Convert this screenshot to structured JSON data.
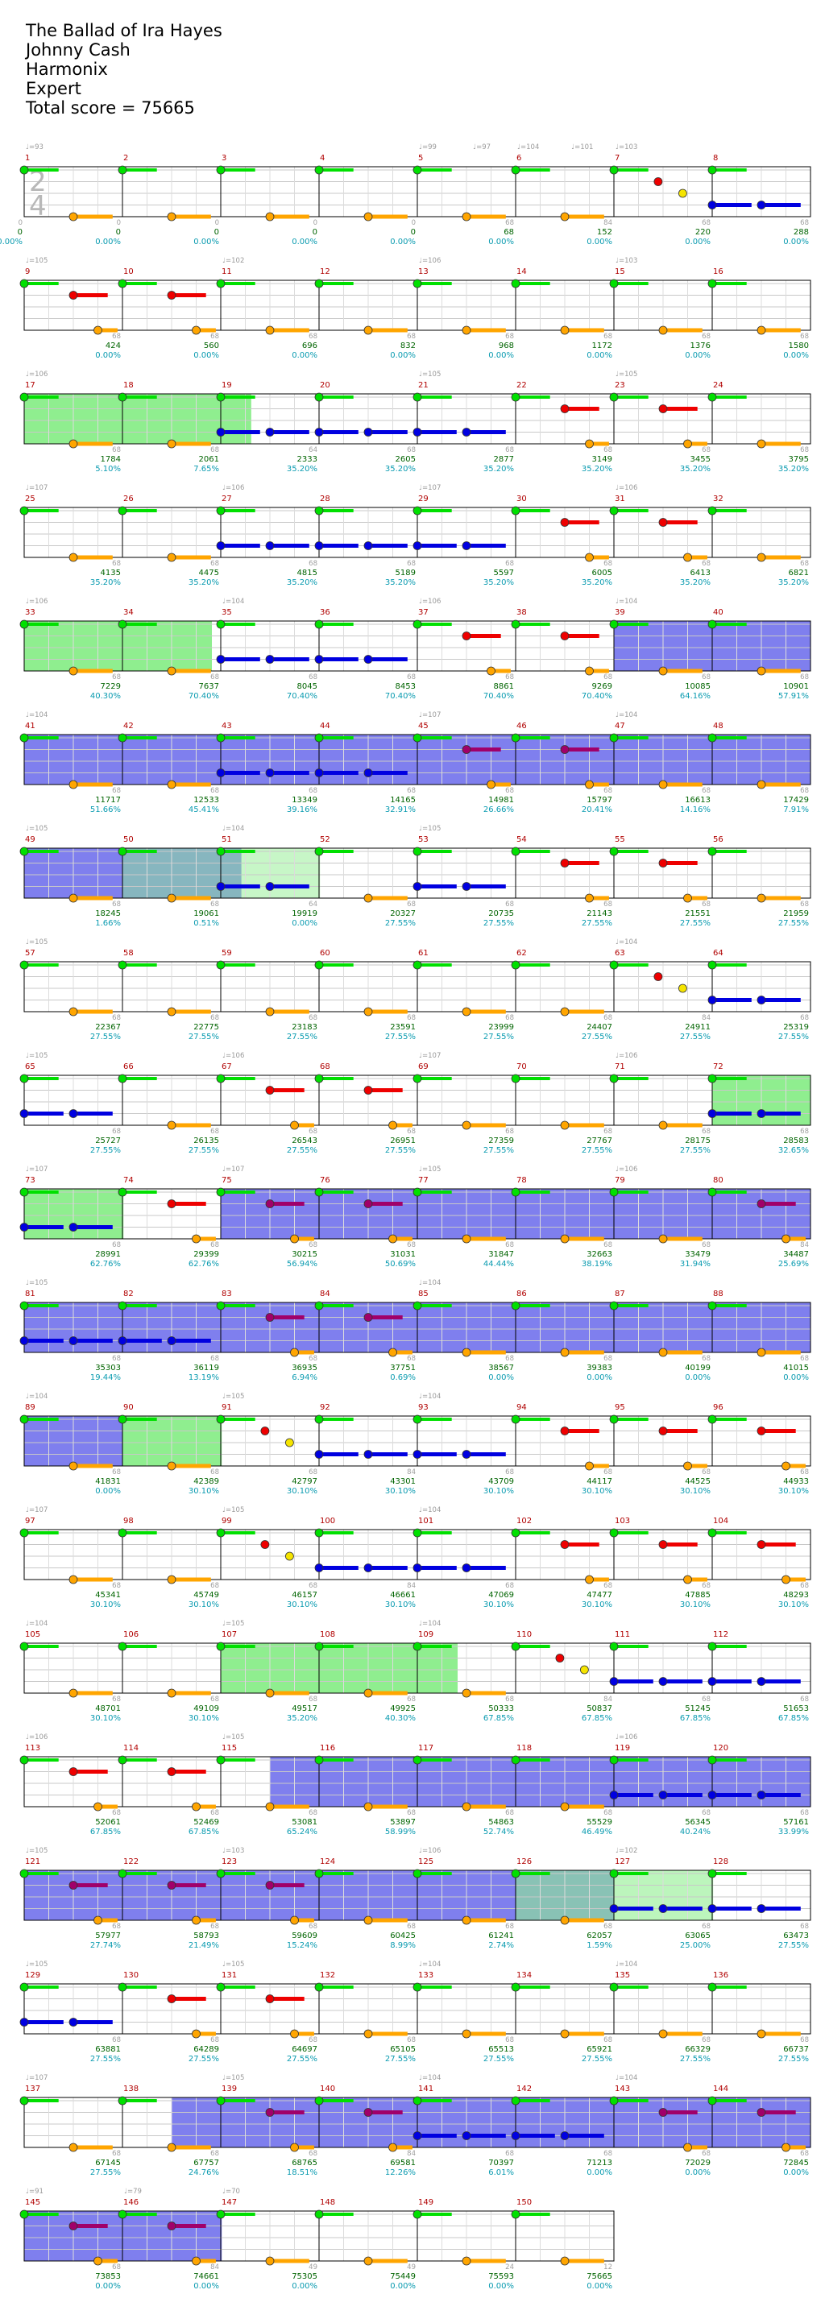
{
  "header": {
    "song": "The Ballad of Ira Hayes",
    "artist": "Johnny Cash",
    "game": "Harmonix",
    "difficulty": "Expert",
    "total_score": "Total score = 75665"
  },
  "time_signature": {
    "top": "2",
    "bottom": "4"
  },
  "colors": {
    "green": "#00e000",
    "red": "#ee0000",
    "yellow": "#f5e400",
    "blue": "#0000e0",
    "orange": "#ffa500",
    "overdrive_note": "#a0006a",
    "overdrive_region": "#7f7fee",
    "solo_region": "#8fee8f",
    "measure_number": "#b00000",
    "score": "#006400",
    "percent": "#0a9bb0"
  },
  "tempo_marks": [
    {
      "measure": 1,
      "label": "♩=93"
    },
    {
      "measure": 5,
      "label": "♩=99"
    },
    {
      "measure": 5,
      "label": "♩=97",
      "offset": 0.55
    },
    {
      "measure": 6,
      "label": "♩=104"
    },
    {
      "measure": 6,
      "label": "♩=101",
      "offset": 0.55
    },
    {
      "measure": 7,
      "label": "♩=103"
    },
    {
      "measure": 9,
      "label": "♩=105"
    },
    {
      "measure": 11,
      "label": "♩=102"
    },
    {
      "measure": 13,
      "label": "♩=106"
    },
    {
      "measure": 15,
      "label": "♩=103"
    },
    {
      "measure": 17,
      "label": "♩=106"
    },
    {
      "measure": 21,
      "label": "♩=105"
    },
    {
      "measure": 23,
      "label": "♩=105"
    },
    {
      "measure": 25,
      "label": "♩=107"
    },
    {
      "measure": 27,
      "label": "♩=106"
    },
    {
      "measure": 29,
      "label": "♩=107"
    },
    {
      "measure": 31,
      "label": "♩=106"
    },
    {
      "measure": 33,
      "label": "♩=106"
    },
    {
      "measure": 35,
      "label": "♩=104"
    },
    {
      "measure": 37,
      "label": "♩=106"
    },
    {
      "measure": 39,
      "label": "♩=104"
    },
    {
      "measure": 41,
      "label": "♩=104"
    },
    {
      "measure": 45,
      "label": "♩=107"
    },
    {
      "measure": 47,
      "label": "♩=104"
    },
    {
      "measure": 49,
      "label": "♩=105"
    },
    {
      "measure": 51,
      "label": "♩=104"
    },
    {
      "measure": 53,
      "label": "♩=105"
    },
    {
      "measure": 57,
      "label": "♩=105"
    },
    {
      "measure": 63,
      "label": "♩=104"
    },
    {
      "measure": 65,
      "label": "♩=105"
    },
    {
      "measure": 67,
      "label": "♩=106"
    },
    {
      "measure": 69,
      "label": "♩=107"
    },
    {
      "measure": 71,
      "label": "♩=106"
    },
    {
      "measure": 73,
      "label": "♩=107"
    },
    {
      "measure": 75,
      "label": "♩=107"
    },
    {
      "measure": 77,
      "label": "♩=105"
    },
    {
      "measure": 79,
      "label": "♩=106"
    },
    {
      "measure": 81,
      "label": "♩=105"
    },
    {
      "measure": 85,
      "label": "♩=104"
    },
    {
      "measure": 89,
      "label": "♩=104"
    },
    {
      "measure": 91,
      "label": "♩=105"
    },
    {
      "measure": 93,
      "label": "♩=104"
    },
    {
      "measure": 97,
      "label": "♩=107"
    },
    {
      "measure": 99,
      "label": "♩=105"
    },
    {
      "measure": 101,
      "label": "♩=104"
    },
    {
      "measure": 105,
      "label": "♩=104"
    },
    {
      "measure": 107,
      "label": "♩=105"
    },
    {
      "measure": 109,
      "label": "♩=104"
    },
    {
      "measure": 113,
      "label": "♩=106"
    },
    {
      "measure": 115,
      "label": "♩=105"
    },
    {
      "measure": 119,
      "label": "♩=106"
    },
    {
      "measure": 121,
      "label": "♩=105"
    },
    {
      "measure": 123,
      "label": "♩=103"
    },
    {
      "measure": 125,
      "label": "♩=106"
    },
    {
      "measure": 127,
      "label": "♩=102"
    },
    {
      "measure": 129,
      "label": "♩=105"
    },
    {
      "measure": 131,
      "label": "♩=105"
    },
    {
      "measure": 133,
      "label": "♩=104"
    },
    {
      "measure": 135,
      "label": "♩=104"
    },
    {
      "measure": 137,
      "label": "♩=107"
    },
    {
      "measure": 139,
      "label": "♩=105"
    },
    {
      "measure": 141,
      "label": "♩=104"
    },
    {
      "measure": 143,
      "label": "♩=104"
    },
    {
      "measure": 145,
      "label": "♩=91"
    },
    {
      "measure": 146,
      "label": "♩=79"
    },
    {
      "measure": 147,
      "label": "♩=70"
    }
  ],
  "measures": [
    {
      "n": 1,
      "bv": "0",
      "score": "0",
      "pct": "0.00%"
    },
    {
      "n": 2,
      "bv": "0",
      "score": "0",
      "pct": "0.00%"
    },
    {
      "n": 3,
      "bv": "0",
      "score": "0",
      "pct": "0.00%"
    },
    {
      "n": 4,
      "bv": "0",
      "score": "0",
      "pct": "0.00%"
    },
    {
      "n": 5,
      "bv": "0",
      "score": "0",
      "pct": "0.00%"
    },
    {
      "n": 6,
      "bv": "68",
      "score": "68",
      "pct": "0.00%"
    },
    {
      "n": 7,
      "bv": "84",
      "score": "152",
      "pct": "0.00%"
    },
    {
      "n": 8,
      "bv": "68",
      "score": "220",
      "pct": "0.00%"
    },
    {
      "n": 0,
      "bv": "68",
      "score": "288",
      "pct": "0.00%"
    },
    {
      "n": 9,
      "bv": "68",
      "score": "424",
      "pct": "0.00%"
    },
    {
      "n": 10,
      "bv": "68",
      "score": "560",
      "pct": "0.00%"
    },
    {
      "n": 11,
      "bv": "68",
      "score": "696",
      "pct": "0.00%"
    },
    {
      "n": 12,
      "bv": "68",
      "score": "832",
      "pct": "0.00%"
    },
    {
      "n": 13,
      "bv": "68",
      "score": "968",
      "pct": "0.00%"
    },
    {
      "n": 14,
      "bv": "68",
      "score": "1172",
      "pct": "0.00%"
    },
    {
      "n": 15,
      "bv": "68",
      "score": "1376",
      "pct": "0.00%"
    },
    {
      "n": 16,
      "bv": "68",
      "score": "1580",
      "pct": "0.00%"
    },
    {
      "n": 17,
      "bv": "68",
      "score": "1784",
      "pct": "5.10%"
    },
    {
      "n": 18,
      "bv": "68",
      "score": "2061",
      "pct": "7.65%"
    },
    {
      "n": 19,
      "bv": "64",
      "score": "2333",
      "pct": "35.20%"
    },
    {
      "n": 20,
      "bv": "68",
      "score": "2605",
      "pct": "35.20%"
    },
    {
      "n": 21,
      "bv": "68",
      "score": "2877",
      "pct": "35.20%"
    },
    {
      "n": 22,
      "bv": "68",
      "score": "3149",
      "pct": "35.20%"
    },
    {
      "n": 23,
      "bv": "68",
      "score": "3455",
      "pct": "35.20%"
    },
    {
      "n": 24,
      "bv": "68",
      "score": "3795",
      "pct": "35.20%"
    },
    {
      "n": 25,
      "bv": "68",
      "score": "4135",
      "pct": "35.20%"
    },
    {
      "n": 26,
      "bv": "68",
      "score": "4475",
      "pct": "35.20%"
    },
    {
      "n": 27,
      "bv": "68",
      "score": "4815",
      "pct": "35.20%"
    },
    {
      "n": 28,
      "bv": "68",
      "score": "5189",
      "pct": "35.20%"
    },
    {
      "n": 29,
      "bv": "68",
      "score": "5597",
      "pct": "35.20%"
    },
    {
      "n": 30,
      "bv": "68",
      "score": "6005",
      "pct": "35.20%"
    },
    {
      "n": 31,
      "bv": "68",
      "score": "6413",
      "pct": "35.20%"
    },
    {
      "n": 32,
      "bv": "68",
      "score": "6821",
      "pct": "35.20%"
    },
    {
      "n": 33,
      "bv": "68",
      "score": "7229",
      "pct": "40.30%"
    },
    {
      "n": 34,
      "bv": "68",
      "score": "7637",
      "pct": "70.40%"
    },
    {
      "n": 35,
      "bv": "68",
      "score": "8045",
      "pct": "70.40%"
    },
    {
      "n": 36,
      "bv": "68",
      "score": "8453",
      "pct": "70.40%"
    },
    {
      "n": 37,
      "bv": "68",
      "score": "8861",
      "pct": "70.40%"
    },
    {
      "n": 38,
      "bv": "68",
      "score": "9269",
      "pct": "70.40%"
    },
    {
      "n": 39,
      "bv": "68",
      "score": "10085",
      "pct": "64.16%"
    },
    {
      "n": 40,
      "bv": "68",
      "score": "10901",
      "pct": "57.91%"
    },
    {
      "n": 41,
      "bv": "68",
      "score": "11717",
      "pct": "51.66%"
    },
    {
      "n": 42,
      "bv": "68",
      "score": "12533",
      "pct": "45.41%"
    },
    {
      "n": 43,
      "bv": "68",
      "score": "13349",
      "pct": "39.16%"
    },
    {
      "n": 44,
      "bv": "68",
      "score": "14165",
      "pct": "32.91%"
    },
    {
      "n": 45,
      "bv": "68",
      "score": "14981",
      "pct": "26.66%"
    },
    {
      "n": 46,
      "bv": "68",
      "score": "15797",
      "pct": "20.41%"
    },
    {
      "n": 47,
      "bv": "68",
      "score": "16613",
      "pct": "14.16%"
    },
    {
      "n": 48,
      "bv": "68",
      "score": "17429",
      "pct": "7.91%"
    },
    {
      "n": 49,
      "bv": "68",
      "score": "18245",
      "pct": "1.66%"
    },
    {
      "n": 50,
      "bv": "68",
      "score": "19061",
      "pct": "0.51%"
    },
    {
      "n": 51,
      "bv": "64",
      "score": "19919",
      "pct": "0.00%"
    },
    {
      "n": 52,
      "bv": "68",
      "score": "20327",
      "pct": "27.55%"
    },
    {
      "n": 53,
      "bv": "68",
      "score": "20735",
      "pct": "27.55%"
    },
    {
      "n": 54,
      "bv": "68",
      "score": "21143",
      "pct": "27.55%"
    },
    {
      "n": 55,
      "bv": "68",
      "score": "21551",
      "pct": "27.55%"
    },
    {
      "n": 56,
      "bv": "68",
      "score": "21959",
      "pct": "27.55%"
    },
    {
      "n": 57,
      "bv": "68",
      "score": "22367",
      "pct": "27.55%"
    },
    {
      "n": 58,
      "bv": "68",
      "score": "22775",
      "pct": "27.55%"
    },
    {
      "n": 59,
      "bv": "68",
      "score": "23183",
      "pct": "27.55%"
    },
    {
      "n": 60,
      "bv": "68",
      "score": "23591",
      "pct": "27.55%"
    },
    {
      "n": 61,
      "bv": "68",
      "score": "23999",
      "pct": "27.55%"
    },
    {
      "n": 62,
      "bv": "68",
      "score": "24407",
      "pct": "27.55%"
    },
    {
      "n": 63,
      "bv": "84",
      "score": "24911",
      "pct": "27.55%"
    },
    {
      "n": 64,
      "bv": "68",
      "score": "25319",
      "pct": "27.55%"
    },
    {
      "n": 65,
      "bv": "68",
      "score": "25727",
      "pct": "27.55%"
    },
    {
      "n": 66,
      "bv": "68",
      "score": "26135",
      "pct": "27.55%"
    },
    {
      "n": 67,
      "bv": "68",
      "score": "26543",
      "pct": "27.55%"
    },
    {
      "n": 68,
      "bv": "68",
      "score": "26951",
      "pct": "27.55%"
    },
    {
      "n": 69,
      "bv": "68",
      "score": "27359",
      "pct": "27.55%"
    },
    {
      "n": 70,
      "bv": "68",
      "score": "27767",
      "pct": "27.55%"
    },
    {
      "n": 71,
      "bv": "68",
      "score": "28175",
      "pct": "27.55%"
    },
    {
      "n": 72,
      "bv": "68",
      "score": "28583",
      "pct": "32.65%"
    },
    {
      "n": 73,
      "bv": "68",
      "score": "28991",
      "pct": "62.76%"
    },
    {
      "n": 74,
      "bv": "68",
      "score": "29399",
      "pct": "62.76%"
    },
    {
      "n": 75,
      "bv": "68",
      "score": "30215",
      "pct": "56.94%"
    },
    {
      "n": 76,
      "bv": "68",
      "score": "31031",
      "pct": "50.69%"
    },
    {
      "n": 77,
      "bv": "68",
      "score": "31847",
      "pct": "44.44%"
    },
    {
      "n": 78,
      "bv": "68",
      "score": "32663",
      "pct": "38.19%"
    },
    {
      "n": 79,
      "bv": "68",
      "score": "33479",
      "pct": "31.94%"
    },
    {
      "n": 80,
      "bv": "84",
      "score": "34487",
      "pct": "25.69%"
    },
    {
      "n": 81,
      "bv": "68",
      "score": "35303",
      "pct": "19.44%"
    },
    {
      "n": 82,
      "bv": "68",
      "score": "36119",
      "pct": "13.19%"
    },
    {
      "n": 83,
      "bv": "68",
      "score": "36935",
      "pct": "6.94%"
    },
    {
      "n": 84,
      "bv": "68",
      "score": "37751",
      "pct": "0.69%"
    },
    {
      "n": 85,
      "bv": "68",
      "score": "38567",
      "pct": "0.00%"
    },
    {
      "n": 86,
      "bv": "68",
      "score": "39383",
      "pct": "0.00%"
    },
    {
      "n": 87,
      "bv": "68",
      "score": "40199",
      "pct": "0.00%"
    },
    {
      "n": 88,
      "bv": "68",
      "score": "41015",
      "pct": "0.00%"
    },
    {
      "n": 89,
      "bv": "68",
      "score": "41831",
      "pct": "0.00%"
    },
    {
      "n": 90,
      "bv": "68",
      "score": "42389",
      "pct": "30.10%"
    },
    {
      "n": 91,
      "bv": "68",
      "score": "42797",
      "pct": "30.10%"
    },
    {
      "n": 92,
      "bv": "84",
      "score": "43301",
      "pct": "30.10%"
    },
    {
      "n": 93,
      "bv": "68",
      "score": "43709",
      "pct": "30.10%"
    },
    {
      "n": 94,
      "bv": "68",
      "score": "44117",
      "pct": "30.10%"
    },
    {
      "n": 95,
      "bv": "68",
      "score": "44525",
      "pct": "30.10%"
    },
    {
      "n": 96,
      "bv": "68",
      "score": "44933",
      "pct": "30.10%"
    },
    {
      "n": 97,
      "bv": "68",
      "score": "45341",
      "pct": "30.10%"
    },
    {
      "n": 98,
      "bv": "68",
      "score": "45749",
      "pct": "30.10%"
    },
    {
      "n": 99,
      "bv": "68",
      "score": "46157",
      "pct": "30.10%"
    },
    {
      "n": 100,
      "bv": "84",
      "score": "46661",
      "pct": "30.10%"
    },
    {
      "n": 101,
      "bv": "68",
      "score": "47069",
      "pct": "30.10%"
    },
    {
      "n": 102,
      "bv": "68",
      "score": "47477",
      "pct": "30.10%"
    },
    {
      "n": 103,
      "bv": "68",
      "score": "47885",
      "pct": "30.10%"
    },
    {
      "n": 104,
      "bv": "68",
      "score": "48293",
      "pct": "30.10%"
    },
    {
      "n": 105,
      "bv": "68",
      "score": "48701",
      "pct": "30.10%"
    },
    {
      "n": 106,
      "bv": "68",
      "score": "49109",
      "pct": "30.10%"
    },
    {
      "n": 107,
      "bv": "68",
      "score": "49517",
      "pct": "35.20%"
    },
    {
      "n": 108,
      "bv": "68",
      "score": "49925",
      "pct": "40.30%"
    },
    {
      "n": 109,
      "bv": "68",
      "score": "50333",
      "pct": "67.85%"
    },
    {
      "n": 110,
      "bv": "84",
      "score": "50837",
      "pct": "67.85%"
    },
    {
      "n": 111,
      "bv": "68",
      "score": "51245",
      "pct": "67.85%"
    },
    {
      "n": 112,
      "bv": "68",
      "score": "51653",
      "pct": "67.85%"
    },
    {
      "n": 113,
      "bv": "68",
      "score": "52061",
      "pct": "67.85%"
    },
    {
      "n": 114,
      "bv": "68",
      "score": "52469",
      "pct": "67.85%"
    },
    {
      "n": 115,
      "bv": "68",
      "score": "53081",
      "pct": "65.24%"
    },
    {
      "n": 116,
      "bv": "68",
      "score": "53897",
      "pct": "58.99%"
    },
    {
      "n": 117,
      "bv": "68",
      "score": "54863",
      "pct": "52.74%"
    },
    {
      "n": 118,
      "bv": "68",
      "score": "55529",
      "pct": "46.49%"
    },
    {
      "n": 119,
      "bv": "68",
      "score": "56345",
      "pct": "40.24%"
    },
    {
      "n": 120,
      "bv": "68",
      "score": "57161",
      "pct": "33.99%"
    },
    {
      "n": 121,
      "bv": "68",
      "score": "57977",
      "pct": "27.74%"
    },
    {
      "n": 122,
      "bv": "68",
      "score": "58793",
      "pct": "21.49%"
    },
    {
      "n": 123,
      "bv": "68",
      "score": "59609",
      "pct": "15.24%"
    },
    {
      "n": 124,
      "bv": "68",
      "score": "60425",
      "pct": "8.99%"
    },
    {
      "n": 125,
      "bv": "68",
      "score": "61241",
      "pct": "2.74%"
    },
    {
      "n": 126,
      "bv": "68",
      "score": "62057",
      "pct": "1.59%"
    },
    {
      "n": 127,
      "bv": "68",
      "score": "63065",
      "pct": "25.00%"
    },
    {
      "n": 128,
      "bv": "68",
      "score": "63473",
      "pct": "27.55%"
    },
    {
      "n": 129,
      "bv": "68",
      "score": "63881",
      "pct": "27.55%"
    },
    {
      "n": 130,
      "bv": "68",
      "score": "64289",
      "pct": "27.55%"
    },
    {
      "n": 131,
      "bv": "68",
      "score": "64697",
      "pct": "27.55%"
    },
    {
      "n": 132,
      "bv": "68",
      "score": "65105",
      "pct": "27.55%"
    },
    {
      "n": 133,
      "bv": "68",
      "score": "65513",
      "pct": "27.55%"
    },
    {
      "n": 134,
      "bv": "68",
      "score": "65921",
      "pct": "27.55%"
    },
    {
      "n": 135,
      "bv": "68",
      "score": "66329",
      "pct": "27.55%"
    },
    {
      "n": 136,
      "bv": "68",
      "score": "66737",
      "pct": "27.55%"
    },
    {
      "n": 137,
      "bv": "68",
      "score": "67145",
      "pct": "27.55%"
    },
    {
      "n": 138,
      "bv": "68",
      "score": "67757",
      "pct": "24.76%"
    },
    {
      "n": 139,
      "bv": "68",
      "score": "68765",
      "pct": "18.51%"
    },
    {
      "n": 140,
      "bv": "84",
      "score": "69581",
      "pct": "12.26%"
    },
    {
      "n": 141,
      "bv": "68",
      "score": "70397",
      "pct": "6.01%"
    },
    {
      "n": 142,
      "bv": "68",
      "score": "71213",
      "pct": "0.00%"
    },
    {
      "n": 143,
      "bv": "68",
      "score": "72029",
      "pct": "0.00%"
    },
    {
      "n": 144,
      "bv": "68",
      "score": "72845",
      "pct": "0.00%"
    },
    {
      "n": 145,
      "bv": "68",
      "score": "73853",
      "pct": "0.00%"
    },
    {
      "n": 146,
      "bv": "84",
      "score": "74661",
      "pct": "0.00%"
    },
    {
      "n": 147,
      "bv": "49",
      "score": "75305",
      "pct": "0.00%"
    },
    {
      "n": 148,
      "bv": "49",
      "score": "75449",
      "pct": "0.00%"
    },
    {
      "n": 149,
      "bv": "24",
      "score": "75593",
      "pct": "0.00%"
    },
    {
      "n": 150,
      "bv": "12",
      "score": "75665",
      "pct": "0.00%"
    }
  ]
}
